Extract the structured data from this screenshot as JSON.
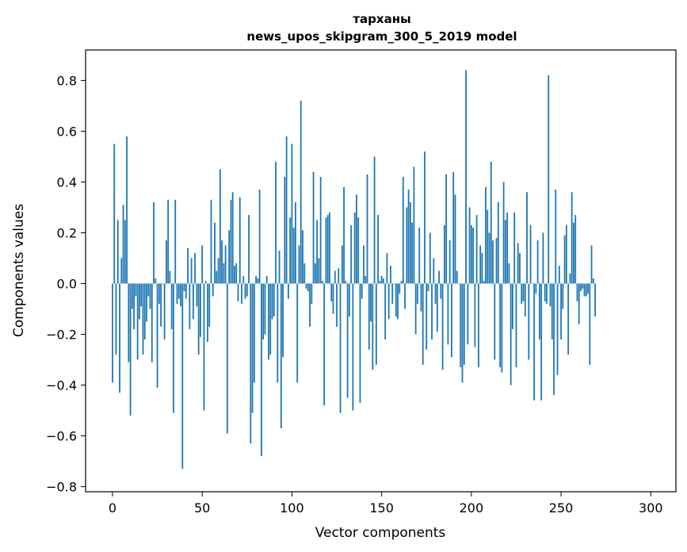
{
  "chart_data": {
    "type": "bar",
    "title": "тарханы",
    "subtitle": "news_upos_skipgram_300_5_2019 model",
    "xlabel": "Vector components",
    "ylabel": "Components values",
    "xlim": [
      -15,
      314
    ],
    "ylim": [
      -0.82,
      0.92
    ],
    "xticks": [
      0,
      50,
      100,
      150,
      200,
      250,
      300
    ],
    "yticks": [
      -0.8,
      -0.6,
      -0.4,
      -0.2,
      0.0,
      0.2,
      0.4,
      0.6,
      0.8
    ],
    "ytick_labels": [
      "−0.8",
      "−0.6",
      "−0.4",
      "−0.2",
      "0.0",
      "0.2",
      "0.4",
      "0.6",
      "0.8"
    ],
    "bar_color": "#1f77b4",
    "grid": false,
    "legend": "none",
    "values": [
      -0.39,
      0.55,
      -0.28,
      0.25,
      -0.43,
      0.1,
      0.31,
      0.25,
      0.58,
      -0.31,
      -0.52,
      -0.1,
      -0.18,
      -0.05,
      -0.3,
      -0.14,
      -0.09,
      -0.28,
      -0.22,
      -0.15,
      -0.05,
      -0.1,
      -0.31,
      0.32,
      0.02,
      -0.41,
      -0.08,
      -0.17,
      0.0,
      -0.22,
      0.17,
      0.33,
      0.05,
      -0.18,
      -0.51,
      0.33,
      -0.08,
      -0.06,
      -0.09,
      -0.73,
      -0.03,
      -0.06,
      0.14,
      -0.18,
      0.1,
      -0.14,
      0.12,
      -0.09,
      -0.28,
      -0.21,
      0.15,
      -0.5,
      0.01,
      -0.23,
      -0.17,
      0.33,
      -0.05,
      0.24,
      0.05,
      0.1,
      0.45,
      0.17,
      0.08,
      0.15,
      -0.59,
      0.21,
      0.33,
      0.36,
      0.07,
      0.08,
      -0.07,
      0.34,
      -0.08,
      0.03,
      -0.06,
      -0.05,
      0.27,
      -0.63,
      -0.51,
      -0.39,
      0.03,
      0.02,
      0.37,
      -0.68,
      -0.22,
      -0.2,
      0.03,
      -0.3,
      -0.28,
      -0.14,
      -0.13,
      0.48,
      -0.39,
      0.13,
      -0.57,
      -0.29,
      0.42,
      0.58,
      -0.06,
      0.26,
      0.55,
      0.22,
      0.32,
      -0.39,
      0.15,
      0.72,
      0.21,
      0.08,
      -0.02,
      -0.03,
      -0.17,
      -0.08,
      0.44,
      0.08,
      0.25,
      0.1,
      0.42,
      0.01,
      -0.48,
      0.26,
      0.27,
      0.28,
      -0.07,
      -0.12,
      0.05,
      -0.17,
      0.06,
      -0.51,
      0.15,
      0.38,
      0.01,
      -0.45,
      -0.13,
      0.23,
      -0.5,
      0.28,
      0.35,
      0.26,
      -0.47,
      -0.06,
      0.15,
      0.03,
      0.43,
      -0.26,
      -0.15,
      -0.34,
      0.5,
      -0.32,
      0.27,
      0.01,
      0.03,
      0.02,
      -0.22,
      0.12,
      -0.14,
      0.07,
      -0.08,
      0.0,
      -0.13,
      -0.14,
      -0.04,
      0.01,
      0.42,
      -0.1,
      0.3,
      0.37,
      0.32,
      0.24,
      0.46,
      -0.2,
      -0.08,
      0.22,
      -0.11,
      -0.32,
      0.52,
      -0.26,
      -0.03,
      0.2,
      -0.22,
      0.1,
      -0.08,
      -0.19,
      0.05,
      -0.06,
      -0.34,
      0.23,
      0.43,
      -0.24,
      0.17,
      -0.29,
      0.44,
      0.35,
      0.05,
      0.0,
      -0.33,
      -0.39,
      -0.32,
      0.84,
      -0.24,
      0.3,
      0.23,
      0.22,
      -0.25,
      0.27,
      -0.33,
      0.15,
      0.12,
      0.01,
      0.38,
      0.29,
      0.2,
      0.48,
      0.17,
      -0.3,
      0.18,
      0.32,
      -0.33,
      -0.35,
      0.4,
      0.25,
      0.28,
      0.08,
      -0.4,
      -0.18,
      0.28,
      -0.33,
      0.16,
      0.12,
      -0.08,
      -0.07,
      -0.13,
      0.36,
      -0.3,
      0.23,
      0.0,
      -0.46,
      -0.04,
      0.17,
      -0.22,
      -0.46,
      0.2,
      -0.07,
      -0.08,
      0.82,
      -0.09,
      -0.22,
      -0.44,
      0.37,
      -0.36,
      0.07,
      -0.22,
      -0.1,
      0.19,
      0.23,
      -0.28,
      0.04,
      0.36,
      0.24,
      0.27,
      -0.07,
      -0.16,
      -0.03,
      -0.02,
      -0.05,
      -0.05,
      -0.04,
      -0.32,
      0.15,
      0.02,
      -0.13
    ]
  }
}
